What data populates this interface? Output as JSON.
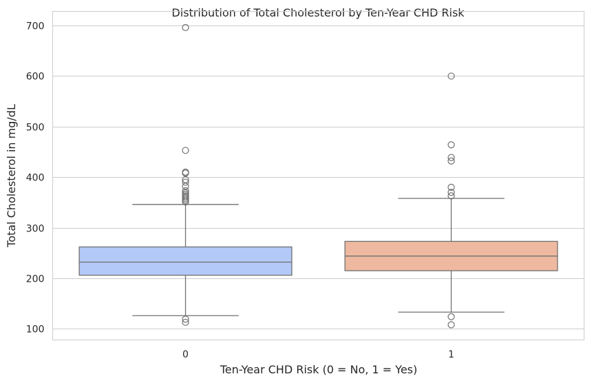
{
  "chart_data": {
    "type": "box",
    "title": "Distribution of Total Cholesterol by Ten-Year CHD Risk",
    "xlabel": "Ten-Year CHD Risk (0 = No, 1 = Yes)",
    "ylabel": "Total Cholesterol in mg/dL",
    "ylim": [
      78,
      728
    ],
    "yticks": [
      100,
      200,
      300,
      400,
      500,
      600,
      700
    ],
    "grid": true,
    "categories": [
      "0",
      "1"
    ],
    "boxes": [
      {
        "category": "0",
        "whisker_low": 126,
        "q1": 206,
        "median": 232,
        "q3": 262,
        "whisker_high": 346,
        "outliers": [
          696,
          453,
          410,
          408,
          395,
          390,
          382,
          373,
          369,
          366,
          363,
          360,
          357,
          354,
          351,
          119,
          113
        ],
        "color": "#b3c9f7"
      },
      {
        "category": "1",
        "whisker_low": 133,
        "q1": 215,
        "median": 244,
        "q3": 273,
        "whisker_high": 358,
        "outliers": [
          600,
          464,
          439,
          432,
          380,
          370,
          363,
          124,
          108
        ],
        "color": "#eeb9a0"
      }
    ]
  }
}
